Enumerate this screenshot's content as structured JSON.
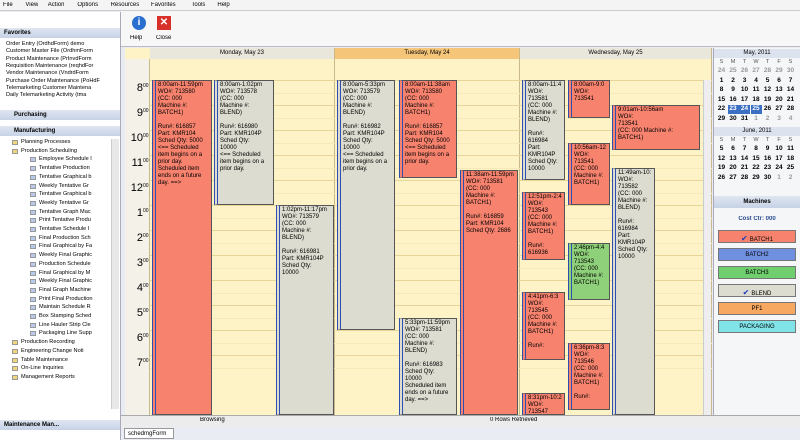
{
  "menu": [
    "File",
    "View",
    "Action",
    "Options",
    "Resources",
    "Favorites",
    "Tools",
    "Help"
  ],
  "toolbar": {
    "help": "Help",
    "close": "Close"
  },
  "favorites": {
    "title": "Favorites",
    "items": [
      "Order Entry (OrdhdForm) demo",
      "Customer Master File (OrdhmForm",
      "Product Maintenance (PrInvdForm",
      "Requisition Maintenance (reqhdFor",
      "Vendor Maintenance (VndrdForm",
      "Purchase Order Maintenance (PoHdF",
      "Telemarketing Customer Maintena",
      "Daily Telemarketing Activity (tma"
    ]
  },
  "sections": {
    "purchasing": "Purchasing",
    "manufacturing": "Manufacturing",
    "maintenance": "Maintenance Man..."
  },
  "tree": {
    "folders_top": [
      "Planning Processes",
      "Production Scheduling"
    ],
    "scheduling_items": [
      "Employee Schedule I",
      "Tentative Production",
      "Tentative Graphical b",
      "Weekly Tentative Gr",
      "Tentative Graphical b",
      "Weekly Tentative Gr",
      "Tentative Graph Mac",
      "Print Tentative Produ",
      "Tentative Schedule I",
      "Final Production Sch",
      "Final Graphical by Fa",
      "Weekly Final Graphic",
      "Production Schedule",
      "Final Graphical by M",
      "Weekly Final Graphic",
      "Final Graph Machine",
      "Print Final Production",
      "Maintain Schedule R",
      "Box Stamping Sched",
      "Line Hauler Strip Cle",
      "Packaging Line Supp"
    ],
    "folders_bottom": [
      "Production Recording",
      "Engineering Change Noti",
      "Table Maintenance",
      "On-Line Inquiries",
      "Management Reports"
    ]
  },
  "calendar": {
    "days": [
      "Monday, May 23",
      "Tuesday, May 24",
      "Wednesday, May 25"
    ],
    "hours": [
      "8",
      "9",
      "10",
      "11",
      "12",
      "1",
      "2",
      "3",
      "4",
      "5",
      "6",
      "7"
    ],
    "minute": "00",
    "appointments": [
      {
        "color": "#f7836f",
        "lines": [
          "8:00am-11:59pm",
          "WO#: 713580",
          "(CC: 000",
          "Machine #:",
          "BATCH1)",
          "",
          "Run#: 616857",
          "Part: KMR104",
          "Sched Qty: 5000",
          "<== Scheduled",
          "item begins on a",
          "prior day.",
          "Scheduled item",
          "ends on a future",
          "day. ==>"
        ]
      },
      {
        "color": "#dcdcd0",
        "lines": [
          "8:00am-1:02pm",
          "WO#: 713578",
          "(CC: 000",
          "Machine #:",
          "BLEND)",
          "",
          "Run#: 616980",
          "Part: KMR104P",
          "Sched Qty:",
          "10000",
          "<== Scheduled",
          "item begins on a",
          "prior day."
        ]
      },
      {
        "color": "#dcdcd0",
        "lines": [
          "1:02pm-11:17pm",
          "WO#: 713579",
          "(CC: 000",
          "Machine #:",
          "BLEND)",
          "",
          "Run#: 616981",
          "Part: KMR104P",
          "Sched Qty:",
          "10000"
        ]
      },
      {
        "color": "#dcdcd0",
        "lines": [
          "8:00am-5:33pm",
          "WO#: 713579",
          "(CC: 000",
          "Machine #:",
          "BLEND)",
          "",
          "Run#: 616982",
          "Part: KMR104P",
          "Sched Qty:",
          "10000",
          "<== Scheduled",
          "item begins on a",
          "prior day."
        ]
      },
      {
        "color": "#f7836f",
        "lines": [
          "8:00am-11:38am",
          "WO#: 713580",
          "(CC: 000",
          "Machine #:",
          "BATCH1)",
          "",
          "Run#: 616857",
          "Part: KMR104",
          "Sched Qty: 5000",
          "<== Scheduled",
          "item begins on a",
          "prior day."
        ]
      },
      {
        "color": "#f7836f",
        "lines": [
          "11:38am-11:59pm",
          "WO#: 713581",
          "(CC: 000",
          "Machine #:",
          "BATCH1)",
          "",
          "Run#: 616859",
          "Part: KMR104",
          "Sched Qty: 2686"
        ]
      },
      {
        "color": "#dcdcd0",
        "lines": [
          "5:33pm-11:59pm",
          "WO#: 713581",
          "(CC: 000",
          "Machine #:",
          "BLEND)",
          "",
          "Run#: 616983",
          "Sched Qty:",
          "10000",
          "Scheduled item",
          "ends on a future",
          "day. ==>"
        ]
      },
      {
        "color": "#dcdcd0",
        "lines": [
          "8:00am-11:4",
          "WO#:",
          "713581",
          "(CC: 000",
          "Machine #:",
          "BLEND)",
          "",
          "Run#:",
          "616984",
          "Part:",
          "KMR104P",
          "Sched Qty:",
          "10000"
        ]
      },
      {
        "color": "#f7836f",
        "lines": [
          "8:00am-9:0",
          "WO#:",
          "713541"
        ]
      },
      {
        "color": "#f7836f",
        "lines": [
          "9:01am-10:56am",
          "WO#:",
          "713541",
          "(CC: 000 Machine #:",
          "BATCH1)",
          "",
          "Run#: 616934"
        ]
      },
      {
        "color": "#f7836f",
        "lines": [
          "10:56am-12",
          "WO#:",
          "713541",
          "(CC: 000",
          "Machine #:",
          "BATCH1)"
        ]
      },
      {
        "color": "#f7836f",
        "lines": [
          "12:51pm-2:4",
          "WO#:",
          "713543",
          "(CC: 000",
          "Machine #:",
          "BATCH1)",
          "",
          "Run#:",
          "616936"
        ]
      },
      {
        "color": "#dcdcd0",
        "lines": [
          "11:49am-10:",
          "WO#:",
          "713582",
          "(CC: 000",
          "Machine #:",
          "BLEND)",
          "",
          "Run#:",
          "616984",
          "Part:",
          "KMR104P",
          "Sched Qty:",
          "10000"
        ]
      },
      {
        "color": "#8fd07a",
        "lines": [
          "2:46pm-4:4",
          "WO#:",
          "713543",
          "(CC: 000",
          "Machine #:",
          "BATCH1)"
        ]
      },
      {
        "color": "#f7836f",
        "lines": [
          "4:41pm-6:3",
          "WO#:",
          "713545",
          "(CC: 000",
          "Machine #:",
          "BATCH1)",
          "",
          "Run#:"
        ]
      },
      {
        "color": "#f7836f",
        "lines": [
          "6:36pm-8:3",
          "WO#:",
          "713546",
          "(CC: 000",
          "Machine #:",
          "BATCH1)",
          "",
          "Run#:"
        ]
      },
      {
        "color": "#f7836f",
        "lines": [
          "8:31pm-10:2",
          "WO#:",
          "713547"
        ]
      }
    ]
  },
  "mini_calendars": [
    {
      "title": "May, 2011",
      "weekdays": [
        "S",
        "M",
        "T",
        "W",
        "T",
        "F",
        "S"
      ],
      "weeks": [
        [
          24,
          25,
          26,
          27,
          28,
          29,
          30
        ],
        [
          1,
          2,
          3,
          4,
          5,
          6,
          7
        ],
        [
          8,
          9,
          10,
          11,
          12,
          13,
          14
        ],
        [
          15,
          16,
          17,
          18,
          19,
          20,
          21
        ],
        [
          22,
          23,
          24,
          25,
          26,
          27,
          28
        ],
        [
          29,
          30,
          31,
          1,
          2,
          3,
          4
        ]
      ]
    },
    {
      "title": "June, 2011",
      "weekdays": [
        "S",
        "M",
        "T",
        "W",
        "T",
        "F",
        "S"
      ],
      "weeks": [
        [
          5,
          6,
          7,
          8,
          9,
          10,
          11
        ],
        [
          12,
          13,
          14,
          15,
          16,
          17,
          18
        ],
        [
          19,
          20,
          21,
          22,
          23,
          24,
          25
        ],
        [
          26,
          27,
          28,
          29,
          30,
          1,
          2
        ]
      ]
    }
  ],
  "machines": {
    "title": "Machines",
    "cost_center": "Cost Ctr: 000",
    "items": [
      {
        "name": "BATCH1",
        "color": "#f7836f",
        "checked": true
      },
      {
        "name": "BATCH2",
        "color": "#6f8fe0",
        "checked": false
      },
      {
        "name": "BATCH3",
        "color": "#6fcf6f",
        "checked": false
      },
      {
        "name": "BLEND",
        "color": "#dcdcd0",
        "checked": true
      },
      {
        "name": "PF1",
        "color": "#f7a860",
        "checked": false
      },
      {
        "name": "PACKAGING",
        "color": "#7fe3e8",
        "checked": false
      }
    ]
  },
  "status": {
    "state": "Browsing",
    "rows": "0 Rows Retrieved",
    "tab": "schedmgForm"
  }
}
